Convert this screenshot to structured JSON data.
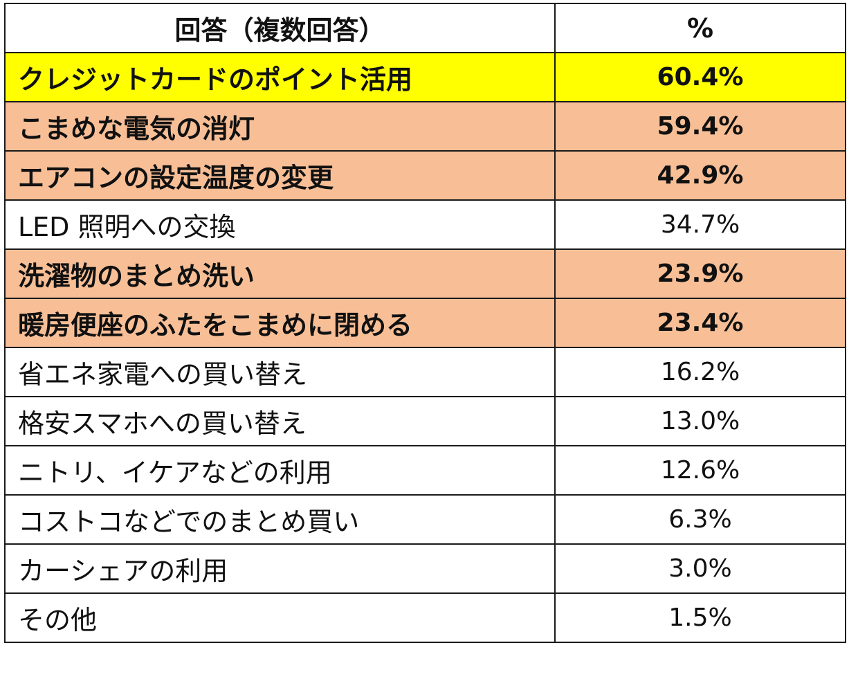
{
  "colors": {
    "top_highlight": "#ffff00",
    "emphasis_highlight": "#f8bf97",
    "default": "#ffffff",
    "border": "#1a1a1a"
  },
  "chart_data": {
    "type": "table",
    "columns": [
      "回答（複数回答）",
      "%"
    ],
    "rows": [
      {
        "label": "クレジットカードのポイント活用",
        "value": "60.4%",
        "highlight": "top_highlight",
        "bold": true
      },
      {
        "label": "こまめな電気の消灯",
        "value": "59.4%",
        "highlight": "emphasis_highlight",
        "bold": true
      },
      {
        "label": "エアコンの設定温度の変更",
        "value": "42.9%",
        "highlight": "emphasis_highlight",
        "bold": true
      },
      {
        "label": "LED 照明への交換",
        "value": "34.7%",
        "highlight": "default",
        "bold": false
      },
      {
        "label": "洗濯物のまとめ洗い",
        "value": "23.9%",
        "highlight": "emphasis_highlight",
        "bold": true
      },
      {
        "label": "暖房便座のふたをこまめに閉める",
        "value": "23.4%",
        "highlight": "emphasis_highlight",
        "bold": true
      },
      {
        "label": "省エネ家電への買い替え",
        "value": "16.2%",
        "highlight": "default",
        "bold": false
      },
      {
        "label": "格安スマホへの買い替え",
        "value": "13.0%",
        "highlight": "default",
        "bold": false
      },
      {
        "label": "ニトリ、イケアなどの利用",
        "value": "12.6%",
        "highlight": "default",
        "bold": false
      },
      {
        "label": "コストコなどでのまとめ買い",
        "value": "6.3%",
        "highlight": "default",
        "bold": false
      },
      {
        "label": "カーシェアの利用",
        "value": "3.0%",
        "highlight": "default",
        "bold": false
      },
      {
        "label": "その他",
        "value": "1.5%",
        "highlight": "default",
        "bold": false
      }
    ]
  }
}
